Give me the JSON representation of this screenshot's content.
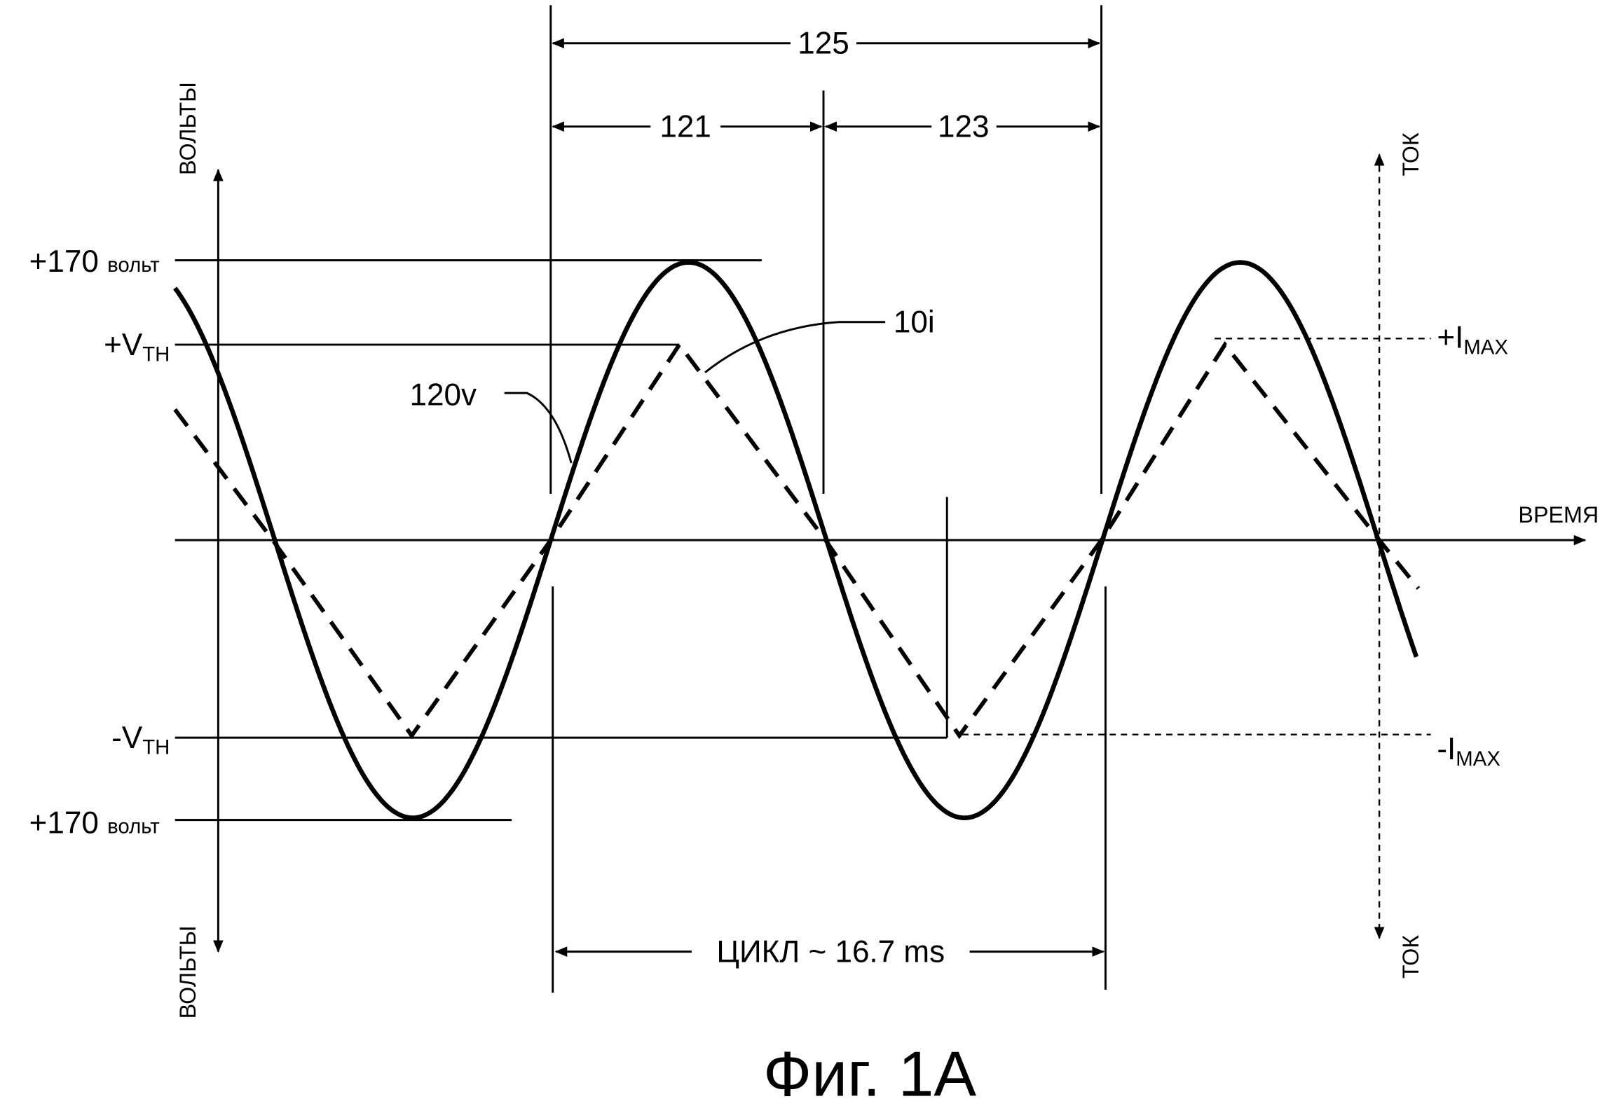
{
  "axes": {
    "y_left_top": "ВОЛЬТЫ",
    "y_left_bottom": "ВОЛЬТЫ",
    "y_right_top": "ТОК",
    "y_right_bottom": "ТОК",
    "x": "ВРЕМЯ"
  },
  "voltage_levels": [
    {
      "main": "+170",
      "unit": "вольт"
    },
    {
      "main": "+V",
      "sub": "TH"
    },
    {
      "main": "-V",
      "sub": "TH"
    },
    {
      "main": "+170",
      "unit": "вольт"
    }
  ],
  "current_levels": [
    {
      "main": "+I",
      "sub": "MAX"
    },
    {
      "main": "-I",
      "sub": "MAX"
    }
  ],
  "dimensions": [
    {
      "label": "125"
    },
    {
      "label": "121"
    },
    {
      "label": "123"
    },
    {
      "label": "ЦИКЛ ~ 16.7 ms"
    }
  ],
  "curves": [
    {
      "label": "120v"
    },
    {
      "label": "10i"
    }
  ],
  "caption": "Фиг. 1A"
}
